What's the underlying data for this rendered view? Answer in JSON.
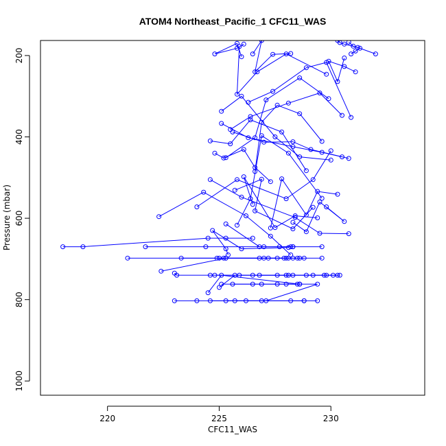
{
  "chart_data": {
    "type": "line",
    "title": "ATOM4 Northeast_Pacific_1 CFC11_WAS",
    "xlabel": "CFC11_WAS",
    "ylabel": "Pressure (mbar)",
    "xlim": [
      217,
      234.2
    ],
    "ylim": [
      1035,
      163
    ],
    "y_reversed": true,
    "x_ticks": [
      220,
      225,
      230
    ],
    "y_ticks": [
      200,
      400,
      600,
      800,
      1000
    ],
    "grid": false,
    "legend": "none",
    "color": "#0000FF",
    "marker": "open-circle",
    "series": [
      {
        "x": [
          229.4,
          228.8,
          226.9,
          224.0,
          223.0
        ],
        "y": [
          803,
          803,
          803,
          803,
          803
        ]
      },
      {
        "x": [
          225.7,
          225.3,
          228.2,
          228.8,
          226.2
        ],
        "y": [
          803,
          803,
          803,
          803,
          803
        ]
      },
      {
        "x": [
          224.6,
          227.1,
          229.4,
          228.6,
          228.6
        ],
        "y": [
          803,
          803,
          762,
          762,
          762
        ]
      },
      {
        "x": [
          225.1,
          226.9,
          228.5,
          228.0,
          227.6
        ],
        "y": [
          762,
          762,
          762,
          762,
          762
        ]
      },
      {
        "x": [
          224.5,
          225.1,
          228.6,
          226.5,
          225.6
        ],
        "y": [
          783,
          740,
          762,
          762,
          762
        ]
      },
      {
        "x": [
          225.0,
          225.7,
          227.6,
          229.2,
          230.1
        ],
        "y": [
          770,
          740,
          740,
          740,
          740
        ]
      },
      {
        "x": [
          223.0,
          223.1,
          224.6,
          226.5,
          228.1
        ],
        "y": [
          735,
          740,
          740,
          740,
          740
        ]
      },
      {
        "x": [
          230.4,
          229.7,
          228.9,
          228.3,
          226.8
        ],
        "y": [
          740,
          740,
          740,
          740,
          740
        ]
      },
      {
        "x": [
          224.8,
          225.9,
          228.0,
          229.8,
          230.3
        ],
        "y": [
          740,
          740,
          740,
          740,
          740
        ]
      },
      {
        "x": [
          222.4,
          225.3,
          227.0,
          228.1,
          228.3
        ],
        "y": [
          730,
          698,
          698,
          698,
          698
        ]
      },
      {
        "x": [
          220.9,
          225.0,
          226.8,
          229.6,
          228.5
        ],
        "y": [
          698,
          698,
          698,
          698,
          698
        ]
      },
      {
        "x": [
          223.3,
          225.2,
          227.6,
          228.0,
          227.2
        ],
        "y": [
          698,
          698,
          698,
          698,
          698
        ]
      },
      {
        "x": [
          224.9,
          225.3,
          227.9,
          228.6,
          228.8
        ],
        "y": [
          698,
          698,
          698,
          698,
          698
        ]
      },
      {
        "x": [
          218.0,
          218.9,
          224.5,
          225.3,
          226.5
        ],
        "y": [
          670,
          670,
          649,
          649,
          649
        ]
      },
      {
        "x": [
          221.7,
          224.4,
          227.0,
          228.3,
          228.3
        ],
        "y": [
          670,
          670,
          670,
          670,
          670
        ]
      },
      {
        "x": [
          225.4,
          225.3,
          224.7,
          226.0,
          228.1
        ],
        "y": [
          690,
          675,
          630,
          675,
          672
        ]
      },
      {
        "x": [
          225.3,
          226.8,
          227.7,
          228.2,
          229.6
        ],
        "y": [
          614,
          670,
          670,
          670,
          670
        ]
      },
      {
        "x": [
          224.0,
          225.8,
          228.0,
          229.2,
          230.0
        ],
        "y": [
          572,
          505,
          552,
          505,
          434
        ]
      },
      {
        "x": [
          222.3,
          224.3,
          226.2,
          227.3,
          228.2
        ],
        "y": [
          596,
          536,
          594,
          644,
          690
        ]
      },
      {
        "x": [
          224.6,
          226.0,
          228.4,
          229.5,
          230.8
        ],
        "y": [
          505,
          548,
          598,
          637,
          638
        ]
      },
      {
        "x": [
          225.7,
          226.9,
          226.6,
          228.3,
          229.2
        ],
        "y": [
          531,
          504,
          582,
          626,
          573
        ]
      },
      {
        "x": [
          226.5,
          226.1,
          227.5,
          228.4,
          229.4
        ],
        "y": [
          566,
          498,
          623,
          594,
          599
        ]
      },
      {
        "x": [
          228.3,
          228.9,
          229.5,
          230.6,
          229.8
        ],
        "y": [
          610,
          633,
          560,
          608,
          572
        ]
      },
      {
        "x": [
          227.3,
          227.8,
          228.9,
          229.4,
          230.3
        ],
        "y": [
          624,
          503,
          592,
          534,
          541
        ]
      },
      {
        "x": [
          225.8,
          226.4,
          226.9,
          228.1,
          229.6
        ],
        "y": [
          617,
          552,
          397,
          440,
          551
        ]
      },
      {
        "x": [
          224.8,
          225.2,
          226.1,
          226.6,
          227.3
        ],
        "y": [
          440,
          452,
          431,
          475,
          510
        ]
      },
      {
        "x": [
          224.6,
          225.5,
          226.4,
          227.8,
          228.9
        ],
        "y": [
          410,
          417,
          358,
          388,
          483
        ]
      },
      {
        "x": [
          225.1,
          226.0,
          227.5,
          228.6,
          230.0
        ],
        "y": [
          337,
          300,
          400,
          449,
          457
        ]
      },
      {
        "x": [
          225.1,
          226.3,
          228.3,
          229.6,
          230.5
        ],
        "y": [
          367,
          402,
          424,
          438,
          449
        ]
      },
      {
        "x": [
          225.6,
          227.0,
          228.3,
          229.1,
          230.8
        ],
        "y": [
          388,
          413,
          412,
          431,
          453
        ]
      },
      {
        "x": [
          226.6,
          226.9,
          227.6,
          228.6,
          229.6
        ],
        "y": [
          485,
          364,
          322,
          343,
          411
        ]
      },
      {
        "x": [
          225.3,
          226.6,
          227.1,
          228.6,
          229.9
        ],
        "y": [
          451,
          402,
          309,
          255,
          306
        ]
      },
      {
        "x": [
          225.5,
          226.4,
          228.1,
          229.5,
          230.5
        ],
        "y": [
          382,
          350,
          317,
          292,
          347
        ]
      },
      {
        "x": [
          226.3,
          227.4,
          228.9,
          229.8,
          230.9
        ],
        "y": [
          315,
          288,
          230,
          217,
          352
        ]
      },
      {
        "x": [
          225.9,
          225.8,
          226.7,
          228.0,
          229.8
        ],
        "y": [
          178,
          295,
          240,
          196,
          246
        ]
      },
      {
        "x": [
          226.5,
          226.9,
          226.6,
          227.4,
          228.2
        ],
        "y": [
          196,
          163,
          240,
          197,
          195
        ]
      },
      {
        "x": [
          226.1,
          225.8,
          224.8,
          225.8,
          226.0
        ],
        "y": [
          172,
          182,
          196,
          170,
          203
        ]
      },
      {
        "x": [
          230.6,
          230.3,
          229.9,
          230.6,
          231.1
        ],
        "y": [
          206,
          264,
          214,
          227,
          240
        ]
      },
      {
        "x": [
          230.9,
          231.1,
          231.3,
          231.0,
          230.8
        ],
        "y": [
          196,
          189,
          182,
          177,
          167
        ]
      },
      {
        "x": [
          232.0,
          231.2,
          230.6,
          230.4,
          230.3
        ],
        "y": [
          196,
          180,
          172,
          168,
          163
        ]
      }
    ]
  }
}
